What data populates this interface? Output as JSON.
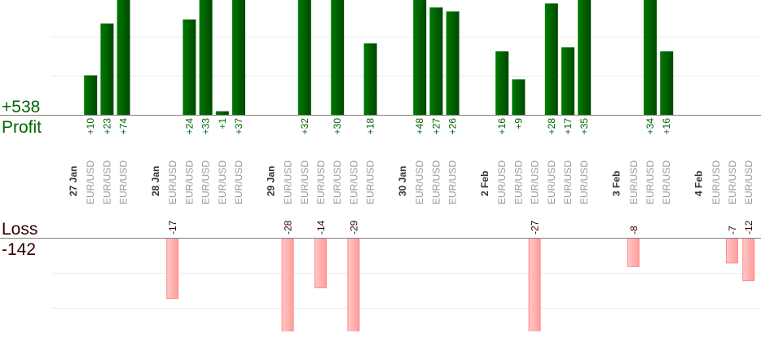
{
  "summary": {
    "profit_total": "+538",
    "profit_label": "Profit",
    "loss_label": "Loss",
    "loss_total": "-142"
  },
  "colors": {
    "profit": "#006600",
    "profit_bar_light": "#007a00",
    "profit_bar_dark": "#004800",
    "loss_text": "#330000",
    "loss_bar_light": "#ffc8c8",
    "loss_bar_dark": "#ff9c9c",
    "loss_bar_border": "#ff8a8a",
    "symbol_text": "#999999",
    "date_text": "#333333"
  },
  "chart_data": {
    "type": "bar",
    "grid": true,
    "groups": [
      {
        "date": "27 Jan",
        "trades": [
          {
            "symbol": "EUR/USD",
            "value": 10
          },
          {
            "symbol": "EUR/USD",
            "value": 23
          },
          {
            "symbol": "EUR/USD",
            "value": 74
          }
        ]
      },
      {
        "date": "28 Jan",
        "trades": [
          {
            "symbol": "EUR/USD",
            "value": -17
          },
          {
            "symbol": "EUR/USD",
            "value": 24
          },
          {
            "symbol": "EUR/USD",
            "value": 33
          },
          {
            "symbol": "EUR/USD",
            "value": 1
          },
          {
            "symbol": "EUR/USD",
            "value": 37
          }
        ]
      },
      {
        "date": "29 Jan",
        "trades": [
          {
            "symbol": "EUR/USD",
            "value": -28
          },
          {
            "symbol": "EUR/USD",
            "value": 32
          },
          {
            "symbol": "EUR/USD",
            "value": -14
          },
          {
            "symbol": "EUR/USD",
            "value": 30
          },
          {
            "symbol": "EUR/USD",
            "value": -29
          },
          {
            "symbol": "EUR/USD",
            "value": 18
          }
        ]
      },
      {
        "date": "30 Jan",
        "trades": [
          {
            "symbol": "EUR/USD",
            "value": 48
          },
          {
            "symbol": "EUR/USD",
            "value": 27
          },
          {
            "symbol": "EUR/USD",
            "value": 26
          }
        ]
      },
      {
        "date": "2 Feb",
        "trades": [
          {
            "symbol": "EUR/USD",
            "value": 16
          },
          {
            "symbol": "EUR/USD",
            "value": 9
          },
          {
            "symbol": "EUR/USD",
            "value": -27
          },
          {
            "symbol": "EUR/USD",
            "value": 28
          },
          {
            "symbol": "EUR/USD",
            "value": 17
          },
          {
            "symbol": "EUR/USD",
            "value": 35
          }
        ]
      },
      {
        "date": "3 Feb",
        "trades": [
          {
            "symbol": "EUR/USD",
            "value": -8
          },
          {
            "symbol": "EUR/USD",
            "value": 34
          },
          {
            "symbol": "EUR/USD",
            "value": 16
          }
        ]
      },
      {
        "date": "4 Feb",
        "trades": [
          {
            "symbol": "EUR/USD",
            "value": null
          },
          {
            "symbol": "EUR/USD",
            "value": -7
          },
          {
            "symbol": "EUR/USD",
            "value": -12
          }
        ]
      }
    ]
  }
}
